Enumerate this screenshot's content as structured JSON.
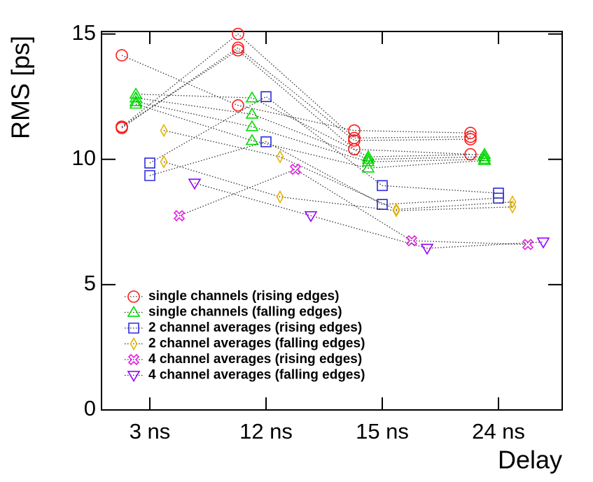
{
  "chart_data": {
    "type": "line",
    "x_label": "Delay",
    "y_label": "RMS [ps]",
    "categories": [
      "3 ns",
      "12 ns",
      "15 ns",
      "24 ns"
    ],
    "ylim": [
      0,
      15.1
    ],
    "yticks": [
      0,
      5,
      10,
      15
    ],
    "series": [
      {
        "name": "single channels (rising edges)",
        "color": "#ff1a1a",
        "marker": "circle",
        "channels": [
          [
            14.15,
            12.15,
            11.15,
            11.05
          ],
          [
            11.3,
            15.0,
            10.85,
            10.9
          ],
          [
            11.25,
            14.45,
            10.75,
            10.8
          ],
          [
            11.3,
            14.35,
            10.4,
            10.2
          ]
        ]
      },
      {
        "name": "single channels (falling edges)",
        "color": "#00dd00",
        "marker": "triangle",
        "channels": [
          [
            12.6,
            12.45,
            10.1,
            10.2
          ],
          [
            12.45,
            11.8,
            10.0,
            10.1
          ],
          [
            12.3,
            11.3,
            9.9,
            10.0
          ],
          [
            12.2,
            10.75,
            9.65,
            9.95
          ]
        ]
      },
      {
        "name": "2 channel averages (rising edges)",
        "color": "#2b2bdd",
        "marker": "square",
        "channels": [
          [
            9.85,
            12.5,
            8.95,
            8.65
          ],
          [
            9.35,
            10.7,
            8.2,
            8.45
          ]
        ]
      },
      {
        "name": "2 channel averages (falling edges)",
        "color": "#e6b400",
        "marker": "diamond",
        "channels": [
          [
            11.15,
            10.1,
            8.0,
            8.3
          ],
          [
            9.9,
            8.5,
            7.95,
            8.1
          ]
        ]
      },
      {
        "name": "4 channel averages (rising edges)",
        "color": "#e020e0",
        "marker": "cross",
        "channels": [
          [
            7.75,
            9.6,
            6.75,
            6.6
          ]
        ]
      },
      {
        "name": "4 channel averages (falling edges)",
        "color": "#9a00ff",
        "marker": "invtriangle",
        "channels": [
          [
            9.05,
            7.75,
            6.45,
            6.7
          ]
        ]
      }
    ]
  }
}
